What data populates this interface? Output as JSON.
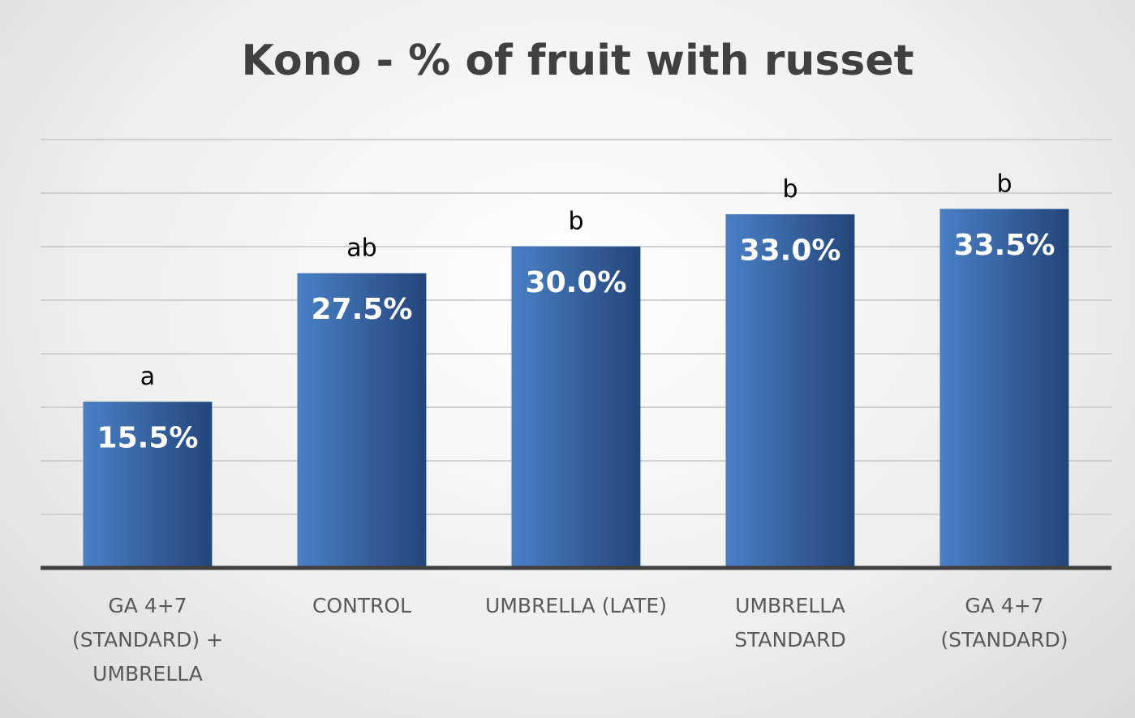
{
  "chart_data": {
    "type": "bar",
    "title": "Kono - % of fruit with russet",
    "categories": [
      "GA 4+7 (STANDARD) + UMBRELLA",
      "CONTROL",
      "UMBRELLA (LATE)",
      "UMBRELLA STANDARD",
      "GA 4+7 (STANDARD)"
    ],
    "values": [
      15.5,
      27.5,
      30.0,
      33.0,
      33.5
    ],
    "value_labels": [
      "15.5%",
      "27.5%",
      "30.0%",
      "33.0%",
      "33.5%"
    ],
    "annotations": [
      "a",
      "ab",
      "b",
      "b",
      "b"
    ],
    "color": "#3a6aad",
    "ylim": [
      0,
      40
    ],
    "yticks": [
      0,
      5,
      10,
      15,
      20,
      25,
      30,
      35,
      40
    ],
    "grid": true
  }
}
